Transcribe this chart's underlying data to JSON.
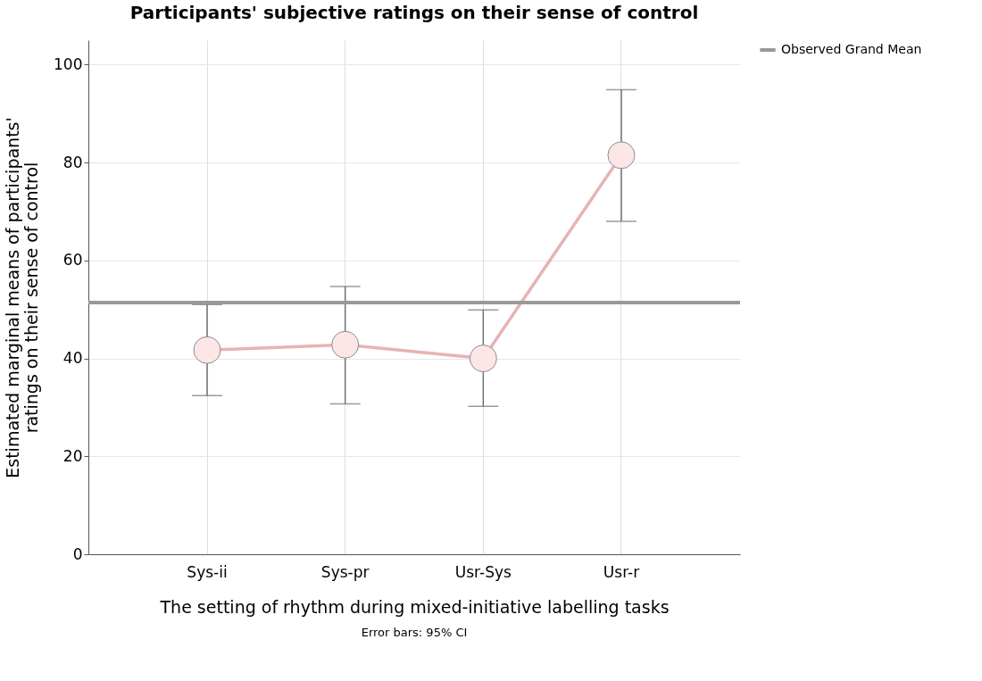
{
  "chart_data": {
    "type": "line",
    "title": "Participants' subjective ratings on their sense of control",
    "xlabel": "The setting of rhythm during mixed-initiative labelling tasks",
    "ylabel": "Estimated marginal means of participants'\nratings on their sense of control",
    "categories": [
      "Sys-ii",
      "Sys-pr",
      "Usr-Sys",
      "Usr-r"
    ],
    "series": [
      {
        "color": "#e6b3b3",
        "values": [
          41.7,
          42.8,
          40.0,
          81.5
        ],
        "errors": [
          [
            32.4,
            51.0
          ],
          [
            30.7,
            54.7
          ],
          [
            30.2,
            49.9
          ],
          [
            68.0,
            94.9
          ]
        ]
      }
    ],
    "marker": "circle",
    "ylim": [
      0,
      105
    ],
    "yticks": [
      0,
      20,
      40,
      60,
      80,
      100
    ],
    "grid": true,
    "ref_lines": [
      {
        "axis": "y",
        "value": 51.4,
        "label": "Observed Grand Mean",
        "color": "#999999"
      }
    ],
    "legend": "right",
    "annotations": [
      "Error bars: 95% CI"
    ]
  }
}
